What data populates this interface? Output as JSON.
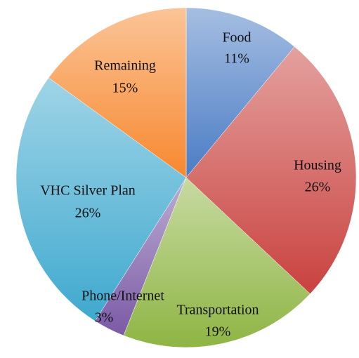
{
  "chart_data": {
    "type": "pie",
    "categories": [
      "Food",
      "Housing",
      "Transportation",
      "Phone/Internet",
      "VHC Silver Plan",
      "Remaining"
    ],
    "values": [
      11,
      26,
      19,
      3,
      26,
      15
    ],
    "value_labels": [
      "11%",
      "26%",
      "19%",
      "3%",
      "26%",
      "15%"
    ],
    "colors": [
      "#4a7cc4",
      "#c9423f",
      "#8fb544",
      "#7b5aa6",
      "#3fa9cf",
      "#f7882f"
    ]
  }
}
